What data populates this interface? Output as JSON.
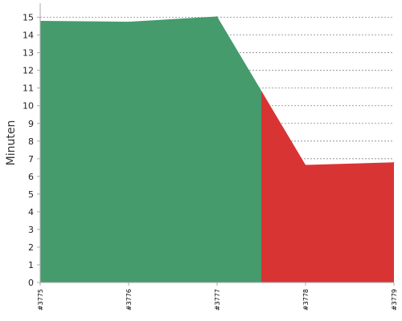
{
  "chart_data": {
    "type": "area",
    "ylabel": "Minuten",
    "xlabel": "",
    "x": [
      "#3775",
      "#3776",
      "#3777",
      "#3778",
      "#3779"
    ],
    "y": [
      14.8,
      14.75,
      15.05,
      6.65,
      6.8
    ],
    "ylim": [
      0,
      15.8
    ],
    "yticks": [
      0,
      1,
      2,
      3,
      4,
      5,
      6,
      7,
      8,
      9,
      10,
      11,
      12,
      13,
      14,
      15
    ],
    "grid": true,
    "color_split_x": 2.5,
    "colors": {
      "before_split": "#459b6c",
      "after_split": "#d93434",
      "gridline": "#888888",
      "axis": "#aaaaaa"
    }
  }
}
